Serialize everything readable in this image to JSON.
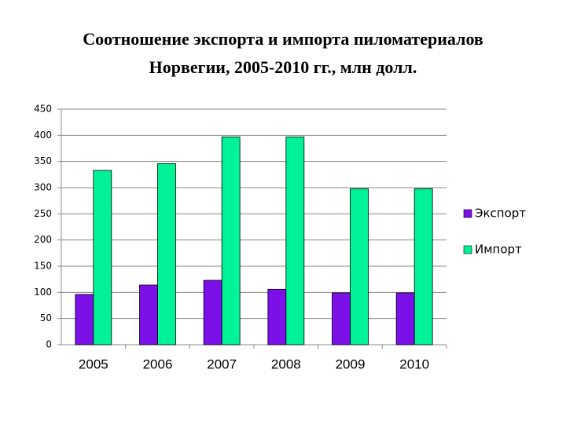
{
  "chart_data": {
    "type": "bar",
    "title": [
      "Соотношение экспорта и импорта пиломатериалов",
      "Норвегии, 2005-2010 гг., млн долл."
    ],
    "categories": [
      "2005",
      "2006",
      "2007",
      "2008",
      "2009",
      "2010"
    ],
    "series": [
      {
        "name": "Экспорт",
        "color": "#7b10e8",
        "values": [
          96,
          114,
          123,
          106,
          99,
          99
        ]
      },
      {
        "name": "Импорт",
        "color": "#00f296",
        "values": [
          333,
          346,
          397,
          397,
          298,
          298
        ]
      }
    ],
    "ylim": [
      0,
      450
    ],
    "yticks": [
      0,
      50,
      100,
      150,
      200,
      250,
      300,
      350,
      400,
      450
    ],
    "grid": true,
    "legend": "right"
  }
}
